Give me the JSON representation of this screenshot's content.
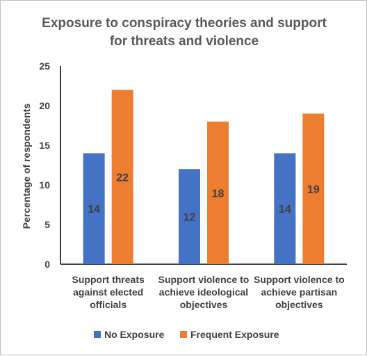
{
  "chart_data": {
    "type": "bar",
    "title": [
      "Exposure to conspiracy theories and support",
      "for threats and violence"
    ],
    "ylabel": "Percentage of respondents",
    "xlabel": "",
    "ylim": [
      0,
      25
    ],
    "yticks": [
      "0",
      "5",
      "10",
      "15",
      "20",
      "25"
    ],
    "ytick_values": [
      0,
      5,
      10,
      15,
      20,
      25
    ],
    "grid": false,
    "legend_position": "bottom",
    "categories": [
      [
        "Support threats",
        "against elected",
        "officials"
      ],
      [
        "Support violence to",
        "achieve ideological",
        "objectives"
      ],
      [
        "Support violence to",
        "achieve partisan",
        "objectives"
      ]
    ],
    "series": [
      {
        "name": "No Exposure",
        "color": "#4472c4",
        "values": [
          14,
          12,
          14
        ],
        "labels": [
          "14",
          "12",
          "14"
        ]
      },
      {
        "name": "Frequent Exposure",
        "color": "#ed7d31",
        "values": [
          22,
          18,
          19
        ],
        "labels": [
          "22",
          "18",
          "19"
        ]
      }
    ]
  }
}
